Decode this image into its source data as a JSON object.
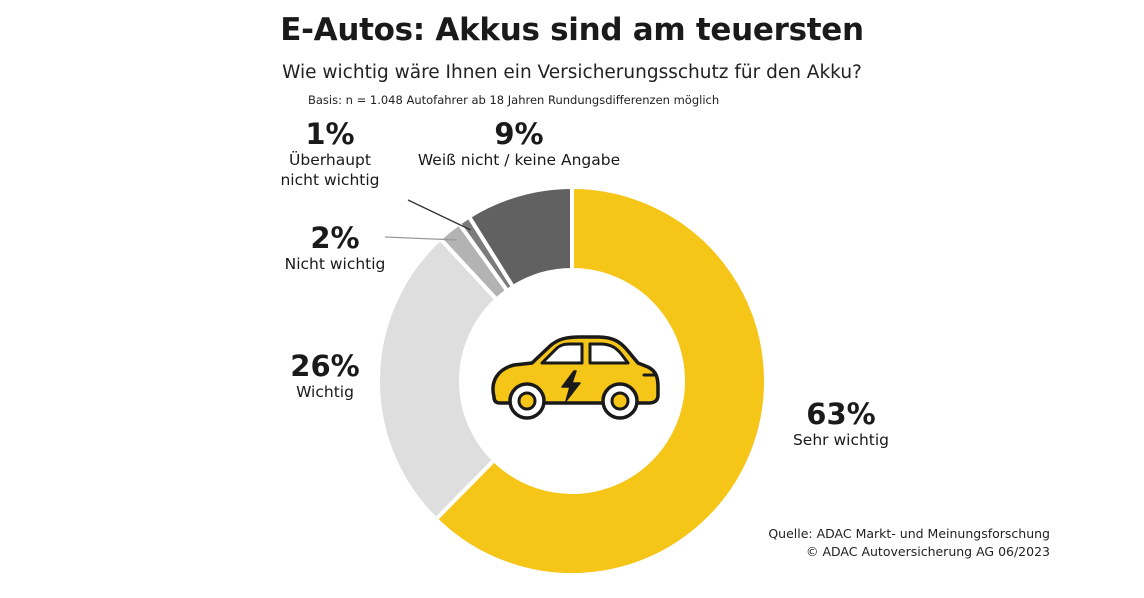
{
  "header": {
    "title": "E-Autos: Akkus sind am teuersten",
    "subtitle": "Wie wichtig wäre Ihnen ein Versicherungsschutz für den Akku?",
    "basis": "Basis: n = 1.048 Autofahrer ab 18 Jahren  Rundungsdifferenzen möglich"
  },
  "chart_data": {
    "type": "pie",
    "variant": "donut",
    "unit": "%",
    "slices": [
      {
        "value": 63,
        "percent_label": "63%",
        "label_lines": [
          "Sehr wichtig"
        ],
        "color": "#f5c518"
      },
      {
        "value": 26,
        "percent_label": "26%",
        "label_lines": [
          "Wichtig"
        ],
        "color": "#dedede"
      },
      {
        "value": 2,
        "percent_label": "2%",
        "label_lines": [
          "Nicht wichtig"
        ],
        "color": "#b3b3b3"
      },
      {
        "value": 1,
        "percent_label": "1%",
        "label_lines": [
          "Überhaupt",
          "nicht wichtig"
        ],
        "color": "#7c7c7c"
      },
      {
        "value": 9,
        "percent_label": "9%",
        "label_lines": [
          "Weiß nicht / keine Angabe"
        ],
        "color": "#616161"
      }
    ],
    "center_icon": "electric-car-icon",
    "legend": "none"
  },
  "footer": {
    "source_line1": "Quelle: ADAC Markt- und Meinungsforschung",
    "source_line2": "© ADAC Autoversicherung AG 06/2023"
  }
}
